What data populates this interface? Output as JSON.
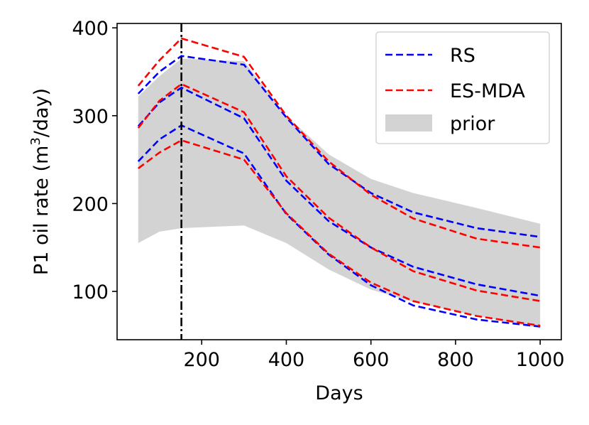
{
  "chart_data": {
    "type": "line",
    "title": "",
    "xlabel": "Days",
    "ylabel_prefix": "P1 oil rate (m",
    "ylabel_sup": "3",
    "ylabel_suffix": "/day)",
    "xlim": [
      0,
      1050
    ],
    "ylim": [
      45,
      405
    ],
    "xticks": [
      200,
      400,
      600,
      800,
      1000
    ],
    "yticks": [
      100,
      200,
      300,
      400
    ],
    "xtick_labels": [
      "200",
      "400",
      "600",
      "800",
      "1000"
    ],
    "ytick_labels": [
      "100",
      "200",
      "300",
      "400"
    ],
    "vline_x": 152,
    "legend_position": "top-right",
    "prior_band": {
      "name": "prior",
      "color": "#d3d3d3",
      "x": [
        50,
        100,
        152,
        300,
        400,
        500,
        600,
        700,
        850,
        1000
      ],
      "upper": [
        322,
        345,
        365,
        362,
        300,
        256,
        228,
        212,
        195,
        177
      ],
      "lower": [
        155,
        168,
        172,
        175,
        155,
        125,
        102,
        88,
        72,
        58
      ]
    },
    "series": [
      {
        "name": "RS",
        "color": "#0000ff",
        "x": [
          50,
          100,
          152,
          300,
          400,
          500,
          600,
          700,
          850,
          1000
        ],
        "values": [
          325,
          350,
          368,
          358,
          298,
          245,
          212,
          190,
          172,
          162
        ]
      },
      {
        "name": "RS",
        "color": "#0000ff",
        "x": [
          50,
          100,
          152,
          300,
          400,
          500,
          600,
          700,
          850,
          1000
        ],
        "values": [
          288,
          315,
          332,
          297,
          226,
          180,
          150,
          128,
          108,
          95
        ]
      },
      {
        "name": "RS",
        "color": "#0000ff",
        "x": [
          50,
          100,
          152,
          300,
          400,
          500,
          600,
          700,
          850,
          1000
        ],
        "values": [
          248,
          273,
          289,
          257,
          188,
          142,
          107,
          84,
          68,
          60
        ]
      },
      {
        "name": "ES-MDA",
        "color": "#ff0000",
        "x": [
          50,
          100,
          152,
          300,
          400,
          500,
          600,
          700,
          850,
          1000
        ],
        "values": [
          334,
          363,
          388,
          367,
          300,
          248,
          210,
          183,
          160,
          150
        ]
      },
      {
        "name": "ES-MDA",
        "color": "#ff0000",
        "x": [
          50,
          100,
          152,
          300,
          400,
          500,
          600,
          700,
          850,
          1000
        ],
        "values": [
          286,
          317,
          336,
          304,
          231,
          184,
          150,
          123,
          101,
          89
        ]
      },
      {
        "name": "ES-MDA",
        "color": "#ff0000",
        "x": [
          50,
          100,
          152,
          300,
          400,
          500,
          600,
          700,
          850,
          1000
        ],
        "values": [
          240,
          258,
          272,
          250,
          189,
          143,
          110,
          89,
          72,
          61
        ]
      }
    ],
    "legend": [
      {
        "label": "RS",
        "color": "#0000ff",
        "kind": "dashed-line"
      },
      {
        "label": "ES-MDA",
        "color": "#ff0000",
        "kind": "dashed-line"
      },
      {
        "label": "prior",
        "color": "#d3d3d3",
        "kind": "patch"
      }
    ]
  }
}
